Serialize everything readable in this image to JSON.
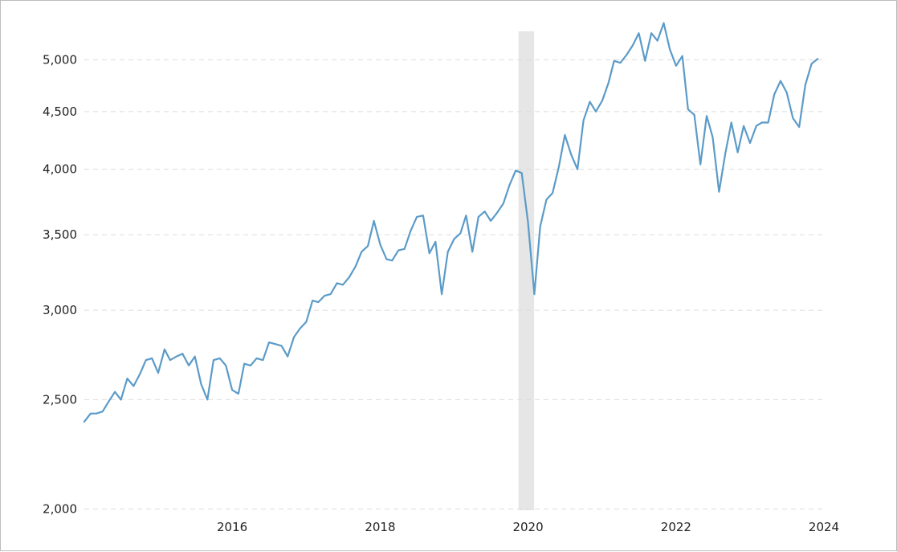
{
  "chart_data": {
    "type": "line",
    "title": "",
    "xlabel": "",
    "ylabel": "",
    "y_scale": "log",
    "ylim": [
      1995,
      5300
    ],
    "xlim": [
      "2014-01-01",
      "2024-01-01"
    ],
    "yticks": [
      {
        "value": 2000,
        "label": "2,000"
      },
      {
        "value": 2500,
        "label": "2,500"
      },
      {
        "value": 3000,
        "label": "3,000"
      },
      {
        "value": 3500,
        "label": "3,500"
      },
      {
        "value": 4000,
        "label": "4,000"
      },
      {
        "value": 4500,
        "label": "4,500"
      },
      {
        "value": 5000,
        "label": "5,000"
      }
    ],
    "xticks": [
      {
        "value": "2016-01-01",
        "label": "2016"
      },
      {
        "value": "2018-01-01",
        "label": "2018"
      },
      {
        "value": "2020-01-01",
        "label": "2020"
      },
      {
        "value": "2022-01-01",
        "label": "2022"
      },
      {
        "value": "2024-01-01",
        "label": "2024"
      }
    ],
    "grid": {
      "horizontal": true,
      "vertical": false,
      "style": "dashed"
    },
    "recession_band": {
      "start": "2019-11-15",
      "end": "2020-01-31"
    },
    "line_color": "#5b9bc8",
    "band_color": "#e6e6e6",
    "series": [
      {
        "x": [
          "2014-01-01",
          "2014-02-01",
          "2014-03-01",
          "2014-04-01",
          "2014-05-01",
          "2014-06-01",
          "2014-07-01",
          "2014-08-01",
          "2014-09-01",
          "2014-10-01",
          "2014-11-01",
          "2014-12-01",
          "2015-01-01",
          "2015-02-01",
          "2015-03-01",
          "2015-04-01",
          "2015-05-01",
          "2015-06-01",
          "2015-07-01",
          "2015-08-01",
          "2015-09-01",
          "2015-10-01",
          "2015-11-01",
          "2015-12-01",
          "2016-01-01",
          "2016-02-01",
          "2016-03-01",
          "2016-04-01",
          "2016-05-01",
          "2016-06-01",
          "2016-07-01",
          "2016-08-01",
          "2016-09-01",
          "2016-10-01",
          "2016-11-01",
          "2016-12-01",
          "2017-01-01",
          "2017-02-01",
          "2017-03-01",
          "2017-04-01",
          "2017-05-01",
          "2017-06-01",
          "2017-07-01",
          "2017-08-01",
          "2017-09-01",
          "2017-10-01",
          "2017-11-01",
          "2017-12-01",
          "2018-01-01",
          "2018-02-01",
          "2018-03-01",
          "2018-04-01",
          "2018-05-01",
          "2018-06-01",
          "2018-07-01",
          "2018-08-01",
          "2018-09-01",
          "2018-10-01",
          "2018-11-01",
          "2018-12-01",
          "2019-01-01",
          "2019-02-01",
          "2019-03-01",
          "2019-04-01",
          "2019-05-01",
          "2019-06-01",
          "2019-07-01",
          "2019-08-01",
          "2019-09-01",
          "2019-10-01",
          "2019-11-01",
          "2019-12-01",
          "2020-01-01",
          "2020-02-01",
          "2020-03-01",
          "2020-04-01",
          "2020-05-01",
          "2020-06-01",
          "2020-07-01",
          "2020-08-01",
          "2020-09-01",
          "2020-10-01",
          "2020-11-01",
          "2020-12-01",
          "2021-01-01",
          "2021-02-01",
          "2021-03-01",
          "2021-04-01",
          "2021-05-01",
          "2021-06-01",
          "2021-07-01",
          "2021-08-01",
          "2021-09-01",
          "2021-10-01",
          "2021-11-01",
          "2021-12-01",
          "2022-01-01",
          "2022-02-01",
          "2022-03-01",
          "2022-04-01",
          "2022-05-01",
          "2022-06-01",
          "2022-07-01",
          "2022-08-01",
          "2022-09-01",
          "2022-10-01",
          "2022-11-01",
          "2022-12-01",
          "2023-01-01",
          "2023-02-01",
          "2023-03-01",
          "2023-04-01",
          "2023-05-01",
          "2023-06-01",
          "2023-07-01",
          "2023-08-01",
          "2023-09-01",
          "2023-10-01",
          "2023-11-01",
          "2023-12-01"
        ],
        "y": [
          2390,
          2430,
          2430,
          2440,
          2490,
          2540,
          2500,
          2610,
          2570,
          2630,
          2710,
          2720,
          2640,
          2770,
          2710,
          2730,
          2745,
          2680,
          2730,
          2580,
          2500,
          2710,
          2720,
          2680,
          2550,
          2530,
          2690,
          2680,
          2720,
          2710,
          2810,
          2800,
          2790,
          2730,
          2840,
          2890,
          2930,
          3060,
          3050,
          3090,
          3100,
          3170,
          3160,
          3210,
          3280,
          3380,
          3420,
          3600,
          3430,
          3330,
          3320,
          3390,
          3400,
          3530,
          3630,
          3640,
          3370,
          3450,
          3100,
          3380,
          3470,
          3510,
          3640,
          3380,
          3630,
          3670,
          3600,
          3660,
          3730,
          3870,
          3990,
          3970,
          3590,
          3100,
          3560,
          3760,
          3810,
          4020,
          4290,
          4120,
          4000,
          4420,
          4590,
          4500,
          4600,
          4770,
          4990,
          4970,
          5050,
          5150,
          5280,
          4990,
          5280,
          5200,
          5390,
          5110,
          4940,
          5040,
          4520,
          4470,
          4040,
          4460,
          4270,
          3820,
          4130,
          4400,
          4140,
          4370,
          4220,
          4370,
          4400,
          4400,
          4660,
          4790,
          4680,
          4440,
          4360,
          4750,
          4960,
          5010
        ]
      }
    ]
  }
}
